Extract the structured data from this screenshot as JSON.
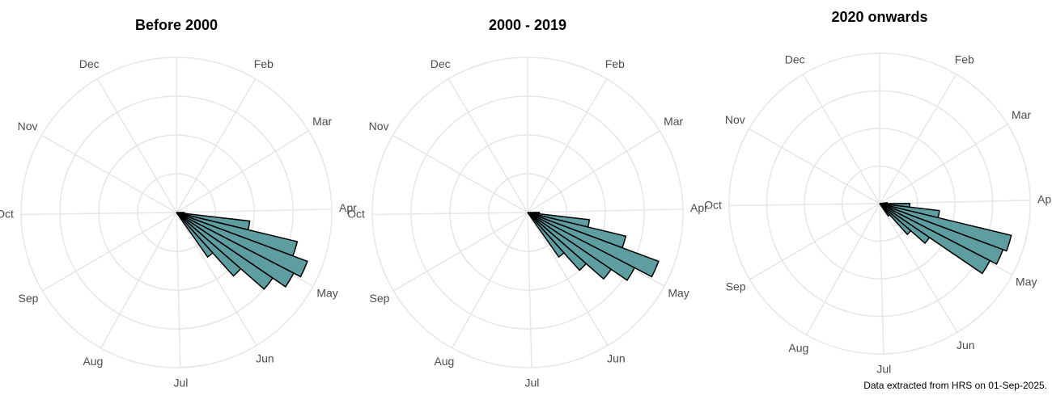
{
  "chart_data": [
    {
      "type": "polar_bar",
      "title": "Before 2000",
      "color": "#5f9ea0",
      "bar_width": 7,
      "x": [
        91,
        98,
        105,
        112,
        119,
        126,
        133,
        140
      ],
      "values": [
        2,
        19,
        32,
        36,
        34,
        30,
        22,
        14
      ],
      "xlim": [
        0,
        365
      ],
      "rlim": [
        0,
        40
      ],
      "rticks": [
        10,
        20,
        30,
        40
      ],
      "xticks": [
        {
          "value": 31,
          "label": "Feb"
        },
        {
          "value": 59,
          "label": "Mar"
        },
        {
          "value": 90,
          "label": "Apr"
        },
        {
          "value": 120,
          "label": "May"
        },
        {
          "value": 151,
          "label": "Jun"
        },
        {
          "value": 181,
          "label": "Jul"
        },
        {
          "value": 212,
          "label": "Aug"
        },
        {
          "value": 243,
          "label": "Sep"
        },
        {
          "value": 273,
          "label": "Oct"
        },
        {
          "value": 304,
          "label": "Nov"
        },
        {
          "value": 334,
          "label": "Dec"
        }
      ]
    },
    {
      "type": "polar_bar",
      "title": "2000 - 2019",
      "color": "#5f9ea0",
      "bar_width": 7,
      "x": [
        91,
        98,
        105,
        112,
        119,
        126,
        133,
        140
      ],
      "values": [
        3,
        16,
        26,
        36,
        31,
        26,
        20,
        14
      ],
      "xlim": [
        0,
        365
      ],
      "rlim": [
        0,
        40
      ],
      "rticks": [
        10,
        20,
        30,
        40
      ],
      "xticks": [
        {
          "value": 31,
          "label": "Feb"
        },
        {
          "value": 59,
          "label": "Mar"
        },
        {
          "value": 90,
          "label": "Apr"
        },
        {
          "value": 120,
          "label": "May"
        },
        {
          "value": 151,
          "label": "Jun"
        },
        {
          "value": 181,
          "label": "Jul"
        },
        {
          "value": 212,
          "label": "Aug"
        },
        {
          "value": 243,
          "label": "Sep"
        },
        {
          "value": 273,
          "label": "Oct"
        },
        {
          "value": 304,
          "label": "Nov"
        },
        {
          "value": 334,
          "label": "Dec"
        }
      ]
    },
    {
      "type": "polar_bar",
      "title": "2020 onwards",
      "color": "#5f9ea0",
      "bar_width": 7,
      "x": [
        84,
        91,
        98,
        105,
        112,
        119,
        126,
        133,
        140
      ],
      "values": [
        2,
        8,
        16,
        36,
        35,
        33,
        16,
        11,
        4
      ],
      "xlim": [
        0,
        365
      ],
      "rlim": [
        0,
        40
      ],
      "rticks": [
        10,
        20,
        30,
        40
      ],
      "xticks": [
        {
          "value": 31,
          "label": "Feb"
        },
        {
          "value": 59,
          "label": "Mar"
        },
        {
          "value": 90,
          "label": "Apr"
        },
        {
          "value": 120,
          "label": "May"
        },
        {
          "value": 151,
          "label": "Jun"
        },
        {
          "value": 181,
          "label": "Jul"
        },
        {
          "value": 212,
          "label": "Aug"
        },
        {
          "value": 243,
          "label": "Sep"
        },
        {
          "value": 273,
          "label": "Oct"
        },
        {
          "value": 304,
          "label": "Nov"
        },
        {
          "value": 334,
          "label": "Dec"
        }
      ]
    }
  ],
  "caption": "Data extracted from HRS on 01-Sep-2025."
}
